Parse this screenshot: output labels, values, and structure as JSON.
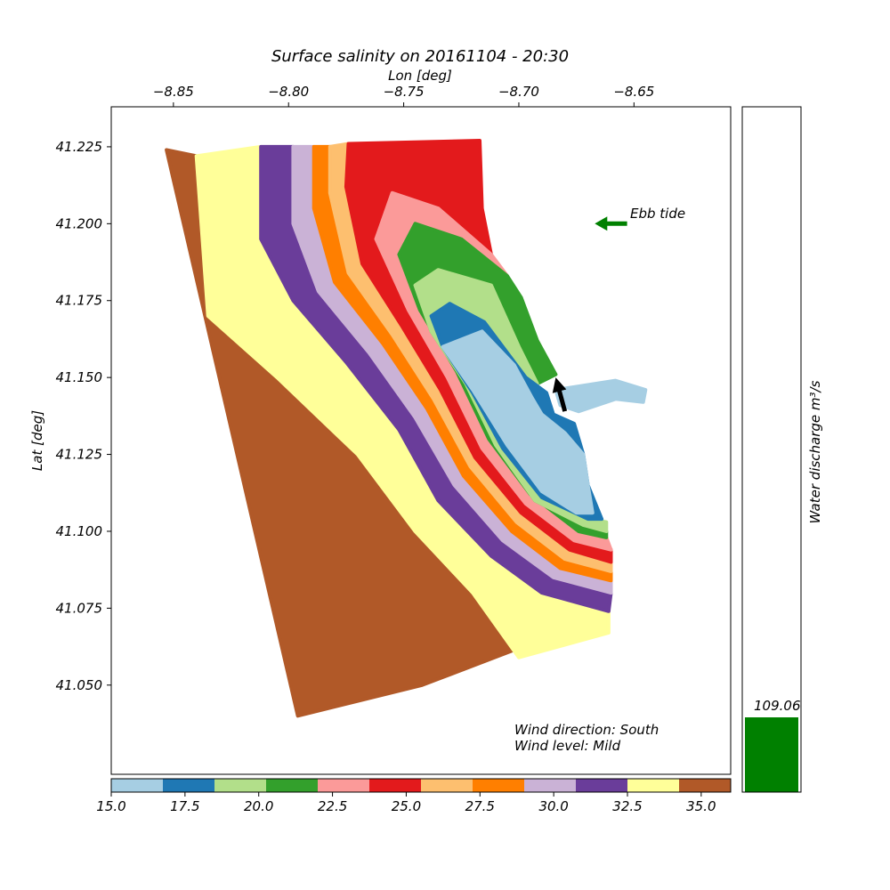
{
  "chart_data": {
    "type": "scatter",
    "title": "Surface salinity on 20161104 - 20:30",
    "xlabel": "Lon [deg]",
    "ylabel": "Lat [deg]",
    "xlim": [
      -8.877,
      -8.608
    ],
    "ylim": [
      41.021,
      41.238
    ],
    "x_axis_position": "top",
    "x_ticks": [
      -8.85,
      -8.8,
      -8.75,
      -8.7,
      -8.65
    ],
    "x_tick_labels": [
      "−8.85",
      "−8.80",
      "−8.75",
      "−8.70",
      "−8.65"
    ],
    "y_ticks": [
      41.05,
      41.075,
      41.1,
      41.125,
      41.15,
      41.175,
      41.2,
      41.225
    ],
    "y_tick_labels": [
      "41.050",
      "41.075",
      "41.100",
      "41.125",
      "41.150",
      "41.175",
      "41.200",
      "41.225"
    ],
    "grid": false,
    "colorbar": {
      "orientation": "horizontal",
      "position": "bottom",
      "range": [
        15.0,
        36.0
      ],
      "boundaries": [
        15.0,
        16.75,
        18.5,
        20.25,
        22.0,
        23.75,
        25.5,
        27.25,
        29.0,
        30.75,
        32.5,
        34.25,
        36.0
      ],
      "colors": [
        "#a6cee3",
        "#1f78b4",
        "#b2df8a",
        "#33a02c",
        "#fb9a99",
        "#e31a1c",
        "#fdbf6f",
        "#ff7f00",
        "#cab2d6",
        "#6a3d9a",
        "#ffff99",
        "#b15928"
      ],
      "ticks": [
        15.0,
        17.5,
        20.0,
        22.5,
        25.0,
        27.5,
        30.0,
        32.5,
        35.0
      ],
      "tick_labels": [
        "15.0",
        "17.5",
        "20.0",
        "22.5",
        "25.0",
        "27.5",
        "30.0",
        "32.5",
        "35.0"
      ]
    },
    "domain_outline": [
      [
        -8.853,
        41.224
      ],
      [
        -8.717,
        41.227
      ],
      [
        -8.716,
        41.205
      ],
      [
        -8.712,
        41.19
      ],
      [
        -8.699,
        41.176
      ],
      [
        -8.692,
        41.162
      ],
      [
        -8.684,
        41.151
      ],
      [
        -8.675,
        41.147
      ],
      [
        -8.658,
        41.149
      ],
      [
        -8.645,
        41.146
      ],
      [
        -8.646,
        41.142
      ],
      [
        -8.672,
        41.135
      ],
      [
        -8.671,
        41.12
      ],
      [
        -8.665,
        41.1
      ],
      [
        -8.659,
        41.078
      ],
      [
        -8.661,
        41.067
      ],
      [
        -8.7,
        41.059
      ],
      [
        -8.742,
        41.05
      ],
      [
        -8.796,
        41.04
      ]
    ],
    "zones": [
      {
        "salinity": 35.5,
        "polygon": [
          [
            -8.853,
            41.224
          ],
          [
            -8.84,
            41.222
          ],
          [
            -8.835,
            41.17
          ],
          [
            -8.805,
            41.15
          ],
          [
            -8.77,
            41.125
          ],
          [
            -8.745,
            41.1
          ],
          [
            -8.72,
            41.08
          ],
          [
            -8.7,
            41.062
          ],
          [
            -8.742,
            41.05
          ],
          [
            -8.796,
            41.04
          ]
        ]
      },
      {
        "salinity": 33.4,
        "polygon": [
          [
            -8.84,
            41.222
          ],
          [
            -8.812,
            41.225
          ],
          [
            -8.812,
            41.195
          ],
          [
            -8.798,
            41.175
          ],
          [
            -8.775,
            41.155
          ],
          [
            -8.752,
            41.133
          ],
          [
            -8.735,
            41.11
          ],
          [
            -8.712,
            41.092
          ],
          [
            -8.69,
            41.08
          ],
          [
            -8.661,
            41.074
          ],
          [
            -8.661,
            41.067
          ],
          [
            -8.7,
            41.059
          ],
          [
            -8.72,
            41.08
          ],
          [
            -8.745,
            41.1
          ],
          [
            -8.77,
            41.125
          ],
          [
            -8.805,
            41.15
          ],
          [
            -8.835,
            41.17
          ]
        ]
      },
      {
        "salinity": 31.6,
        "polygon": [
          [
            -8.812,
            41.225
          ],
          [
            -8.798,
            41.225
          ],
          [
            -8.798,
            41.2
          ],
          [
            -8.787,
            41.178
          ],
          [
            -8.765,
            41.158
          ],
          [
            -8.745,
            41.137
          ],
          [
            -8.728,
            41.115
          ],
          [
            -8.707,
            41.097
          ],
          [
            -8.685,
            41.085
          ],
          [
            -8.66,
            41.08
          ],
          [
            -8.661,
            41.074
          ],
          [
            -8.69,
            41.08
          ],
          [
            -8.712,
            41.092
          ],
          [
            -8.735,
            41.11
          ],
          [
            -8.752,
            41.133
          ],
          [
            -8.775,
            41.155
          ],
          [
            -8.798,
            41.175
          ],
          [
            -8.812,
            41.195
          ]
        ]
      },
      {
        "salinity": 29.9,
        "polygon": [
          [
            -8.798,
            41.225
          ],
          [
            -8.789,
            41.225
          ],
          [
            -8.789,
            41.205
          ],
          [
            -8.78,
            41.181
          ],
          [
            -8.759,
            41.161
          ],
          [
            -8.74,
            41.14
          ],
          [
            -8.724,
            41.118
          ],
          [
            -8.703,
            41.1
          ],
          [
            -8.682,
            41.088
          ],
          [
            -8.66,
            41.084
          ],
          [
            -8.66,
            41.08
          ],
          [
            -8.685,
            41.085
          ],
          [
            -8.707,
            41.097
          ],
          [
            -8.728,
            41.115
          ],
          [
            -8.745,
            41.137
          ],
          [
            -8.765,
            41.158
          ],
          [
            -8.787,
            41.178
          ],
          [
            -8.798,
            41.2
          ]
        ]
      },
      {
        "salinity": 28.1,
        "polygon": [
          [
            -8.789,
            41.225
          ],
          [
            -8.782,
            41.225
          ],
          [
            -8.782,
            41.21
          ],
          [
            -8.774,
            41.184
          ],
          [
            -8.755,
            41.164
          ],
          [
            -8.737,
            41.143
          ],
          [
            -8.721,
            41.121
          ],
          [
            -8.701,
            41.103
          ],
          [
            -8.68,
            41.091
          ],
          [
            -8.66,
            41.087
          ],
          [
            -8.66,
            41.084
          ],
          [
            -8.682,
            41.088
          ],
          [
            -8.703,
            41.1
          ],
          [
            -8.724,
            41.118
          ],
          [
            -8.74,
            41.14
          ],
          [
            -8.759,
            41.161
          ],
          [
            -8.78,
            41.181
          ],
          [
            -8.789,
            41.205
          ]
        ]
      },
      {
        "salinity": 26.4,
        "polygon": [
          [
            -8.782,
            41.225
          ],
          [
            -8.774,
            41.226
          ],
          [
            -8.775,
            41.212
          ],
          [
            -8.768,
            41.187
          ],
          [
            -8.751,
            41.167
          ],
          [
            -8.734,
            41.146
          ],
          [
            -8.719,
            41.124
          ],
          [
            -8.699,
            41.106
          ],
          [
            -8.678,
            41.094
          ],
          [
            -8.66,
            41.09
          ],
          [
            -8.66,
            41.087
          ],
          [
            -8.68,
            41.091
          ],
          [
            -8.701,
            41.103
          ],
          [
            -8.721,
            41.121
          ],
          [
            -8.737,
            41.143
          ],
          [
            -8.755,
            41.164
          ],
          [
            -8.774,
            41.184
          ],
          [
            -8.782,
            41.21
          ]
        ]
      },
      {
        "salinity": 24.6,
        "polygon": [
          [
            -8.774,
            41.226
          ],
          [
            -8.717,
            41.227
          ],
          [
            -8.716,
            41.205
          ],
          [
            -8.712,
            41.19
          ],
          [
            -8.735,
            41.205
          ],
          [
            -8.755,
            41.21
          ],
          [
            -8.762,
            41.195
          ],
          [
            -8.748,
            41.172
          ],
          [
            -8.731,
            41.15
          ],
          [
            -8.716,
            41.127
          ],
          [
            -8.697,
            41.109
          ],
          [
            -8.676,
            41.097
          ],
          [
            -8.66,
            41.094
          ],
          [
            -8.66,
            41.09
          ],
          [
            -8.678,
            41.094
          ],
          [
            -8.699,
            41.106
          ],
          [
            -8.719,
            41.124
          ],
          [
            -8.734,
            41.146
          ],
          [
            -8.751,
            41.167
          ],
          [
            -8.768,
            41.187
          ],
          [
            -8.775,
            41.212
          ]
        ]
      },
      {
        "salinity": 22.9,
        "polygon": [
          [
            -8.762,
            41.195
          ],
          [
            -8.755,
            41.21
          ],
          [
            -8.735,
            41.205
          ],
          [
            -8.712,
            41.19
          ],
          [
            -8.705,
            41.183
          ],
          [
            -8.725,
            41.195
          ],
          [
            -8.745,
            41.2
          ],
          [
            -8.752,
            41.19
          ],
          [
            -8.743,
            41.172
          ],
          [
            -8.727,
            41.152
          ],
          [
            -8.713,
            41.13
          ],
          [
            -8.695,
            41.112
          ],
          [
            -8.674,
            41.1
          ],
          [
            -8.662,
            41.098
          ],
          [
            -8.66,
            41.094
          ],
          [
            -8.676,
            41.097
          ],
          [
            -8.697,
            41.109
          ],
          [
            -8.716,
            41.127
          ],
          [
            -8.731,
            41.15
          ],
          [
            -8.748,
            41.172
          ]
        ]
      },
      {
        "salinity": 21.1,
        "polygon": [
          [
            -8.752,
            41.19
          ],
          [
            -8.745,
            41.2
          ],
          [
            -8.725,
            41.195
          ],
          [
            -8.705,
            41.183
          ],
          [
            -8.699,
            41.176
          ],
          [
            -8.692,
            41.162
          ],
          [
            -8.684,
            41.151
          ],
          [
            -8.692,
            41.148
          ],
          [
            -8.7,
            41.16
          ],
          [
            -8.712,
            41.18
          ],
          [
            -8.735,
            41.185
          ],
          [
            -8.745,
            41.18
          ],
          [
            -8.738,
            41.165
          ],
          [
            -8.723,
            41.148
          ],
          [
            -8.71,
            41.128
          ],
          [
            -8.693,
            41.11
          ],
          [
            -8.672,
            41.102
          ],
          [
            -8.662,
            41.1
          ],
          [
            -8.662,
            41.098
          ],
          [
            -8.674,
            41.1
          ],
          [
            -8.695,
            41.112
          ],
          [
            -8.713,
            41.13
          ],
          [
            -8.727,
            41.152
          ],
          [
            -8.743,
            41.172
          ]
        ]
      },
      {
        "salinity": 19.4,
        "polygon": [
          [
            -8.745,
            41.18
          ],
          [
            -8.735,
            41.185
          ],
          [
            -8.712,
            41.18
          ],
          [
            -8.7,
            41.16
          ],
          [
            -8.692,
            41.148
          ],
          [
            -8.697,
            41.15
          ],
          [
            -8.715,
            41.168
          ],
          [
            -8.73,
            41.174
          ],
          [
            -8.738,
            41.17
          ],
          [
            -8.733,
            41.16
          ],
          [
            -8.72,
            41.145
          ],
          [
            -8.707,
            41.127
          ],
          [
            -8.69,
            41.111
          ],
          [
            -8.67,
            41.104
          ],
          [
            -8.662,
            41.103
          ],
          [
            -8.662,
            41.1
          ],
          [
            -8.672,
            41.102
          ],
          [
            -8.693,
            41.11
          ],
          [
            -8.71,
            41.128
          ],
          [
            -8.723,
            41.148
          ],
          [
            -8.738,
            41.165
          ]
        ]
      },
      {
        "salinity": 17.6,
        "polygon": [
          [
            -8.738,
            41.17
          ],
          [
            -8.73,
            41.174
          ],
          [
            -8.715,
            41.168
          ],
          [
            -8.697,
            41.15
          ],
          [
            -8.688,
            41.145
          ],
          [
            -8.685,
            41.138
          ],
          [
            -8.676,
            41.135
          ],
          [
            -8.672,
            41.125
          ],
          [
            -8.67,
            41.115
          ],
          [
            -8.664,
            41.104
          ],
          [
            -8.67,
            41.104
          ],
          [
            -8.69,
            41.111
          ],
          [
            -8.707,
            41.127
          ],
          [
            -8.72,
            41.145
          ],
          [
            -8.733,
            41.16
          ]
        ]
      },
      {
        "salinity": 15.9,
        "polygon": [
          [
            -8.733,
            41.16
          ],
          [
            -8.716,
            41.165
          ],
          [
            -8.702,
            41.154
          ],
          [
            -8.694,
            41.143
          ],
          [
            -8.69,
            41.138
          ],
          [
            -8.68,
            41.132
          ],
          [
            -8.672,
            41.125
          ],
          [
            -8.67,
            41.115
          ],
          [
            -8.668,
            41.106
          ],
          [
            -8.675,
            41.106
          ],
          [
            -8.69,
            41.113
          ],
          [
            -8.705,
            41.128
          ],
          [
            -8.72,
            41.146
          ]
        ]
      },
      {
        "salinity": 15.4,
        "polygon": [
          [
            -8.684,
            41.146
          ],
          [
            -8.675,
            41.147
          ],
          [
            -8.658,
            41.149
          ],
          [
            -8.645,
            41.146
          ],
          [
            -8.646,
            41.142
          ],
          [
            -8.658,
            41.143
          ],
          [
            -8.674,
            41.139
          ],
          [
            -8.682,
            41.141
          ]
        ]
      }
    ],
    "annotations": {
      "ebb_tide_label": "Ebb tide",
      "ebb_tide_arrow": {
        "from": [
          -8.653,
          41.2
        ],
        "to": [
          -8.667,
          41.2
        ],
        "color": "#008000"
      },
      "flow_arrow": {
        "from": [
          -8.68,
          41.139
        ],
        "to": [
          -8.684,
          41.15
        ],
        "color": "#000000"
      },
      "wind_direction": "Wind direction: South",
      "wind_level": "Wind level: Mild"
    },
    "discharge": {
      "label": "Water discharge m³/s",
      "value": 109.06,
      "value_label": "109.06",
      "max": 1000,
      "bar_color": "#008000"
    }
  }
}
